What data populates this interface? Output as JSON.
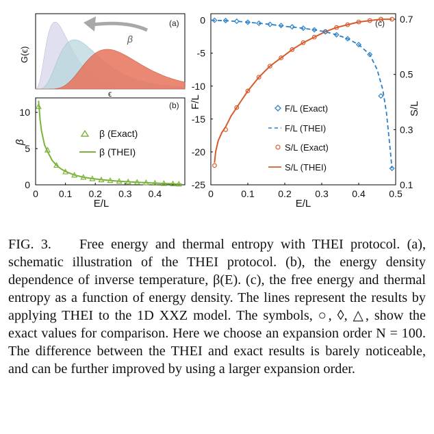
{
  "panel_a": {
    "label": "(a)",
    "ylabel": "G(ϵ)",
    "xlabel": "ϵ",
    "arrow_label": "β",
    "colors": {
      "curve1": "#d6d6ec",
      "curve2": "#b7d6dc",
      "curve3": "#e8735a"
    }
  },
  "chart_data": [
    {
      "panel": "(b)",
      "type": "line",
      "xlabel": "E/L",
      "ylabel": "β",
      "xlim": [
        0,
        0.5
      ],
      "ylim": [
        0,
        12
      ],
      "xticks": [
        "0",
        "0.1",
        "0.2",
        "0.3",
        "0.4"
      ],
      "yticks": [
        "0",
        "5",
        "10"
      ],
      "legend_position": "center",
      "color": "#7bb33a",
      "series": [
        {
          "name": "β (Exact)",
          "marker": "triangle",
          "x": [
            0.01,
            0.04,
            0.07,
            0.1,
            0.13,
            0.16,
            0.19,
            0.22,
            0.25,
            0.28,
            0.31,
            0.34,
            0.37,
            0.4,
            0.43,
            0.46,
            0.48
          ],
          "y": [
            10.8,
            4.8,
            2.7,
            1.8,
            1.35,
            1.05,
            0.85,
            0.7,
            0.6,
            0.5,
            0.42,
            0.36,
            0.3,
            0.25,
            0.2,
            0.15,
            0.12
          ]
        },
        {
          "name": "β (THEI)",
          "marker": "line",
          "x": [
            0.01,
            0.015,
            0.02,
            0.03,
            0.04,
            0.055,
            0.07,
            0.085,
            0.1,
            0.13,
            0.16,
            0.19,
            0.22,
            0.25,
            0.28,
            0.31,
            0.34,
            0.37,
            0.4,
            0.43,
            0.46,
            0.49
          ],
          "y": [
            11.6,
            9.0,
            7.4,
            5.5,
            4.6,
            3.4,
            2.7,
            2.2,
            1.85,
            1.35,
            1.05,
            0.86,
            0.71,
            0.6,
            0.5,
            0.42,
            0.35,
            0.29,
            0.24,
            0.19,
            0.14,
            0.1
          ]
        }
      ]
    },
    {
      "panel": "(c)",
      "type": "line",
      "xlabel": "E/L",
      "ylabel_left": "F/L",
      "ylabel_right": "S/L",
      "xlim": [
        0,
        0.5
      ],
      "ylim_left": [
        -25,
        1
      ],
      "ylim_right": [
        0.1,
        0.72
      ],
      "xticks": [
        "0",
        "0.1",
        "0.2",
        "0.3",
        "0.4",
        "0.5"
      ],
      "yticks_left": [
        "0",
        "-5",
        "-10",
        "-15",
        "-20",
        "-25"
      ],
      "yticks_right": [
        "0.1",
        "0.3",
        "0.5",
        "0.7"
      ],
      "legend_position": "center",
      "colors": {
        "F": "#2a7fc8",
        "S": "#d9592a"
      },
      "series": [
        {
          "name": "F/L (Exact)",
          "axis": "left",
          "marker": "diamond",
          "x": [
            0.01,
            0.04,
            0.07,
            0.1,
            0.13,
            0.16,
            0.19,
            0.22,
            0.25,
            0.28,
            0.31,
            0.34,
            0.37,
            0.4,
            0.43,
            0.46,
            0.49
          ],
          "y": [
            0,
            -0.05,
            -0.15,
            -0.3,
            -0.45,
            -0.62,
            -0.8,
            -1.0,
            -1.2,
            -1.45,
            -1.75,
            -2.2,
            -2.8,
            -3.7,
            -5.2,
            -11.5,
            -22.5
          ]
        },
        {
          "name": "F/L (THEI)",
          "axis": "left",
          "marker": "dashed",
          "x": [
            0.0,
            0.04,
            0.08,
            0.12,
            0.16,
            0.2,
            0.24,
            0.28,
            0.31,
            0.34,
            0.37,
            0.4,
            0.43,
            0.45,
            0.465,
            0.475,
            0.485,
            0.49
          ],
          "y": [
            0,
            -0.06,
            -0.2,
            -0.4,
            -0.62,
            -0.92,
            -1.15,
            -1.45,
            -1.75,
            -2.2,
            -2.8,
            -3.7,
            -5.2,
            -7.5,
            -10.5,
            -14.0,
            -19.5,
            -22.5
          ]
        },
        {
          "name": "S/L (Exact)",
          "axis": "right",
          "marker": "circle",
          "x": [
            0.01,
            0.04,
            0.07,
            0.1,
            0.13,
            0.16,
            0.19,
            0.22,
            0.25,
            0.28,
            0.31,
            0.34,
            0.37,
            0.4,
            0.43,
            0.46,
            0.49
          ],
          "y": [
            0.17,
            0.3,
            0.38,
            0.44,
            0.49,
            0.53,
            0.56,
            0.59,
            0.615,
            0.635,
            0.655,
            0.67,
            0.68,
            0.69,
            0.695,
            0.7,
            0.7
          ]
        },
        {
          "name": "S/L (THEI)",
          "axis": "right",
          "marker": "line",
          "x": [
            0.01,
            0.013,
            0.02,
            0.03,
            0.04,
            0.055,
            0.07,
            0.085,
            0.1,
            0.13,
            0.16,
            0.19,
            0.22,
            0.25,
            0.28,
            0.31,
            0.34,
            0.37,
            0.4,
            0.43,
            0.46,
            0.49
          ],
          "y": [
            0.18,
            0.22,
            0.26,
            0.29,
            0.31,
            0.35,
            0.38,
            0.41,
            0.44,
            0.49,
            0.53,
            0.56,
            0.59,
            0.615,
            0.635,
            0.655,
            0.67,
            0.68,
            0.69,
            0.695,
            0.7,
            0.7
          ]
        }
      ]
    }
  ],
  "caption": {
    "label": "FIG. 3.",
    "text": "Free energy and thermal entropy with THEI protocol. (a), schematic illustration of the THEI protocol. (b), the energy density dependence of inverse temperature, β(E). (c), the free energy and thermal entropy as a function of energy density. The lines represent the results by applying THEI to the 1D XXZ model. The symbols, ○, ◊, △, show the exact values for comparison. Here we choose an expansion order N = 100. The difference between the THEI and exact results is barely noticeable, and can be further improved by using a larger expansion order."
  }
}
